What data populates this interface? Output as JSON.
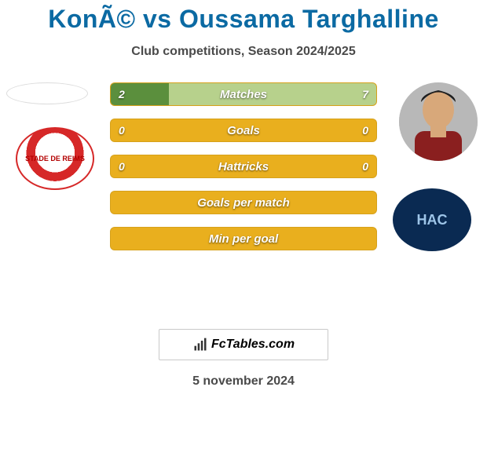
{
  "colors": {
    "title": "#0b6aa3",
    "subtitle": "#4a4a4a",
    "date": "#4a4a4a",
    "bar_base": "#e9af1e",
    "left_fill": "#5b8f3d",
    "right_fill": "#b7d18c",
    "bar_text": "#ffffff"
  },
  "header": {
    "title": "KonÃ© vs Oussama Targhalline",
    "subtitle": "Club competitions, Season 2024/2025"
  },
  "left_club_text": "STADE DE REIMS",
  "right_club_text": "HAC",
  "stats": [
    {
      "label": "Matches",
      "home": "2",
      "away": "7",
      "home_pct": 22,
      "away_pct": 78,
      "show_numbers": true
    },
    {
      "label": "Goals",
      "home": "0",
      "away": "0",
      "home_pct": 0,
      "away_pct": 0,
      "show_numbers": true
    },
    {
      "label": "Hattricks",
      "home": "0",
      "away": "0",
      "home_pct": 0,
      "away_pct": 0,
      "show_numbers": true
    },
    {
      "label": "Goals per match",
      "home": "",
      "away": "",
      "home_pct": 0,
      "away_pct": 0,
      "show_numbers": false
    },
    {
      "label": "Min per goal",
      "home": "",
      "away": "",
      "home_pct": 0,
      "away_pct": 0,
      "show_numbers": false
    }
  ],
  "brand": {
    "text": "FcTables.com"
  },
  "date": "5 november 2024"
}
